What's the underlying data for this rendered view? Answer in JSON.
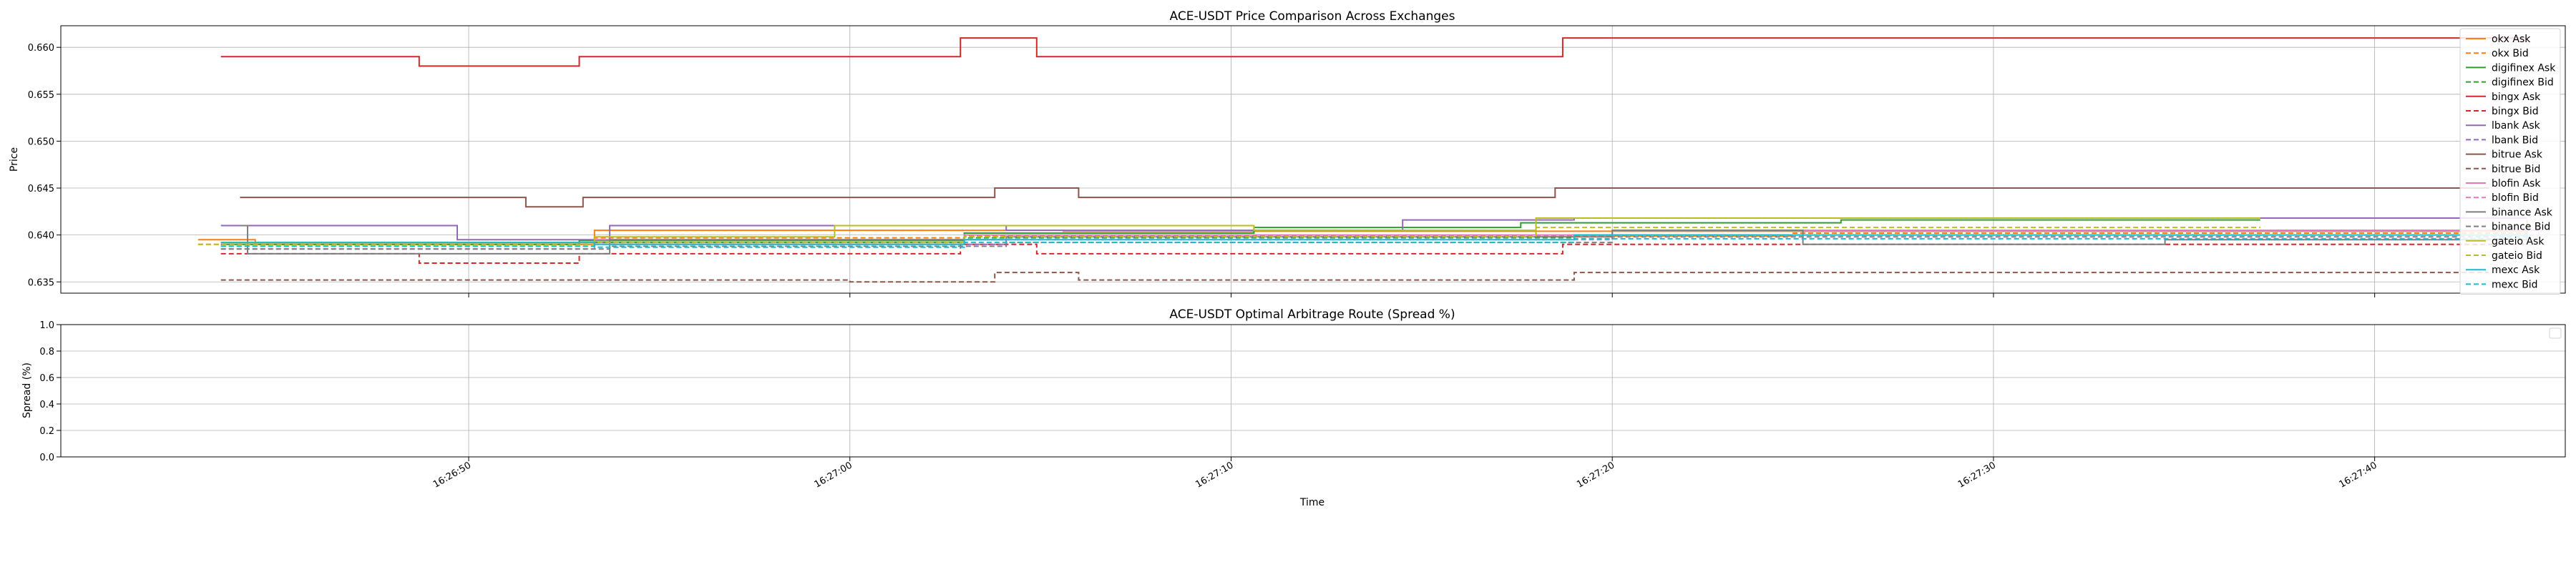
{
  "chart_data": [
    {
      "type": "line",
      "title": "ACE-USDT Price Comparison Across Exchanges",
      "xlabel": "",
      "ylabel": "Price",
      "ylim": [
        0.6338,
        0.6623
      ],
      "yticks": [
        0.635,
        0.64,
        0.645,
        0.65,
        0.655,
        0.66
      ],
      "ytick_labels": [
        "0.635",
        "0.640",
        "0.645",
        "0.650",
        "0.655",
        "0.660"
      ],
      "xlim": [
        "16:26:39.3",
        "16:27:45.0"
      ],
      "xtick_times": [
        "16:26:50",
        "16:27:00",
        "16:27:10",
        "16:27:20",
        "16:27:30",
        "16:27:40"
      ],
      "xtick_labels": [
        "",
        "",
        "",
        "",
        "",
        ""
      ],
      "grid": true,
      "legend_position": "upper-right",
      "series": [
        {
          "name": "okx Ask",
          "color": "#ff7f0e",
          "dash": false,
          "steps": [
            [
              "16:26:42.9",
              0.6395
            ],
            [
              "16:26:44.4",
              0.639
            ],
            [
              "16:26:53.3",
              0.6405
            ],
            [
              "16:27:05.6",
              0.6404
            ],
            [
              "16:27:44.0",
              0.6416
            ]
          ]
        },
        {
          "name": "okx Bid",
          "color": "#ff7f0e",
          "dash": true,
          "steps": [
            [
              "16:26:42.9",
              0.639
            ],
            [
              "16:26:53.3",
              0.6397
            ],
            [
              "16:27:03.0",
              0.6399
            ],
            [
              "16:27:24.7",
              0.6402
            ],
            [
              "16:27:44.0",
              0.6408
            ]
          ]
        },
        {
          "name": "digifinex Ask",
          "color": "#2ca02c",
          "dash": false,
          "steps": [
            [
              "16:26:43.5",
              0.639
            ],
            [
              "16:26:52.9",
              0.6394
            ],
            [
              "16:27:03.0",
              0.6402
            ],
            [
              "16:27:10.6",
              0.6408
            ],
            [
              "16:27:17.6",
              0.6413
            ],
            [
              "16:27:26.0",
              0.6416
            ],
            [
              "16:27:37.0",
              0.6416
            ]
          ]
        },
        {
          "name": "digifinex Bid",
          "color": "#2ca02c",
          "dash": true,
          "steps": [
            [
              "16:26:43.5",
              0.6388
            ],
            [
              "16:26:53.3",
              0.6392
            ],
            [
              "16:27:03.0",
              0.6397
            ],
            [
              "16:27:19.0",
              0.64
            ],
            [
              "16:27:37.0",
              0.6404
            ]
          ]
        },
        {
          "name": "bingx Ask",
          "color": "#d62728",
          "dash": false,
          "steps": [
            [
              "16:26:43.5",
              0.659
            ],
            [
              "16:26:48.7",
              0.658
            ],
            [
              "16:26:52.9",
              0.659
            ],
            [
              "16:27:02.9",
              0.661
            ],
            [
              "16:27:04.9",
              0.659
            ],
            [
              "16:27:18.7",
              0.661
            ],
            [
              "16:27:44.0",
              0.661
            ]
          ]
        },
        {
          "name": "bingx Bid",
          "color": "#d62728",
          "dash": true,
          "steps": [
            [
              "16:26:43.5",
              0.638
            ],
            [
              "16:26:48.7",
              0.637
            ],
            [
              "16:26:52.9",
              0.638
            ],
            [
              "16:27:02.9",
              0.639
            ],
            [
              "16:27:04.9",
              0.638
            ],
            [
              "16:27:18.7",
              0.639
            ],
            [
              "16:27:44.0",
              0.639
            ]
          ]
        },
        {
          "name": "lbank Ask",
          "color": "#9467bd",
          "dash": false,
          "steps": [
            [
              "16:26:43.5",
              0.641
            ],
            [
              "16:26:49.7",
              0.6395
            ],
            [
              "16:26:53.7",
              0.641
            ],
            [
              "16:27:04.1",
              0.6405
            ],
            [
              "16:27:14.5",
              0.6416
            ],
            [
              "16:27:19.0",
              0.6418
            ],
            [
              "16:27:44.0",
              0.6418
            ]
          ]
        },
        {
          "name": "lbank Bid",
          "color": "#9467bd",
          "dash": true,
          "steps": [
            [
              "16:26:43.5",
              0.6392
            ],
            [
              "16:26:53.7",
              0.639
            ],
            [
              "16:27:04.1",
              0.6398
            ],
            [
              "16:27:19.0",
              0.64
            ],
            [
              "16:27:44.0",
              0.6412
            ]
          ]
        },
        {
          "name": "bitrue Ask",
          "color": "#8c564b",
          "dash": false,
          "steps": [
            [
              "16:26:44.0",
              0.644
            ],
            [
              "16:26:51.5",
              0.643
            ],
            [
              "16:26:53.0",
              0.644
            ],
            [
              "16:27:01.0",
              0.644
            ],
            [
              "16:27:03.8",
              0.645
            ],
            [
              "16:27:06.0",
              0.644
            ],
            [
              "16:27:09.0",
              0.644
            ],
            [
              "16:27:18.5",
              0.645
            ],
            [
              "16:27:43.0",
              0.645
            ]
          ]
        },
        {
          "name": "bitrue Bid",
          "color": "#8c564b",
          "dash": true,
          "steps": [
            [
              "16:26:43.5",
              0.6352
            ],
            [
              "16:26:52.9",
              0.6352
            ],
            [
              "16:27:00.0",
              0.635
            ],
            [
              "16:27:03.8",
              0.636
            ],
            [
              "16:27:06.0",
              0.6352
            ],
            [
              "16:27:19.0",
              0.636
            ],
            [
              "16:27:43.0",
              0.636
            ]
          ]
        },
        {
          "name": "blofin Ask",
          "color": "#e377c2",
          "dash": false,
          "steps": [
            [
              "16:26:43.5",
              0.6392
            ],
            [
              "16:26:53.3",
              0.6395
            ],
            [
              "16:27:03.0",
              0.64
            ],
            [
              "16:27:20.0",
              0.6405
            ],
            [
              "16:27:44.3",
              0.641
            ]
          ]
        },
        {
          "name": "blofin Bid",
          "color": "#e377c2",
          "dash": true,
          "steps": [
            [
              "16:26:43.5",
              0.6385
            ],
            [
              "16:26:53.3",
              0.639
            ],
            [
              "16:27:03.0",
              0.6395
            ],
            [
              "16:27:20.0",
              0.64
            ],
            [
              "16:27:44.3",
              0.6405
            ]
          ]
        },
        {
          "name": "binance Ask",
          "color": "#7f7f7f",
          "dash": false,
          "steps": [
            [
              "16:26:44.0",
              0.641
            ],
            [
              "16:26:44.2",
              0.638
            ],
            [
              "16:26:53.7",
              0.6395
            ],
            [
              "16:27:04.1",
              0.6398
            ],
            [
              "16:27:20.0",
              0.6405
            ],
            [
              "16:27:25.0",
              0.639
            ],
            [
              "16:27:34.5",
              0.6395
            ],
            [
              "16:27:44.0",
              0.641
            ]
          ]
        },
        {
          "name": "binance Bid",
          "color": "#7f7f7f",
          "dash": true,
          "steps": [
            [
              "16:26:43.5",
              0.6385
            ],
            [
              "16:26:53.7",
              0.6388
            ],
            [
              "16:27:04.1",
              0.6392
            ],
            [
              "16:27:20.0",
              0.6398
            ],
            [
              "16:27:44.0",
              0.64
            ]
          ]
        },
        {
          "name": "gateio Ask",
          "color": "#bcbd22",
          "dash": false,
          "steps": [
            [
              "16:26:43.5",
              0.6392
            ],
            [
              "16:26:53.3",
              0.6398
            ],
            [
              "16:26:59.6",
              0.641
            ],
            [
              "16:27:03.0",
              0.641
            ],
            [
              "16:27:10.6",
              0.6405
            ],
            [
              "16:27:18.0",
              0.6418
            ],
            [
              "16:27:37.0",
              0.6418
            ]
          ]
        },
        {
          "name": "gateio Bid",
          "color": "#bcbd22",
          "dash": true,
          "steps": [
            [
              "16:26:42.9",
              0.639
            ],
            [
              "16:26:53.3",
              0.6392
            ],
            [
              "16:27:03.0",
              0.6398
            ],
            [
              "16:27:18.0",
              0.6408
            ],
            [
              "16:27:37.0",
              0.6408
            ]
          ]
        },
        {
          "name": "mexc Ask",
          "color": "#17becf",
          "dash": false,
          "steps": [
            [
              "16:26:43.5",
              0.6392
            ],
            [
              "16:26:53.3",
              0.639
            ],
            [
              "16:27:03.0",
              0.6395
            ],
            [
              "16:27:19.0",
              0.64
            ],
            [
              "16:27:44.0",
              0.6408
            ]
          ]
        },
        {
          "name": "mexc Bid",
          "color": "#17becf",
          "dash": true,
          "steps": [
            [
              "16:26:43.5",
              0.6388
            ],
            [
              "16:26:53.3",
              0.6387
            ],
            [
              "16:27:03.0",
              0.6392
            ],
            [
              "16:27:19.0",
              0.6396
            ],
            [
              "16:27:44.0",
              0.6404
            ]
          ]
        }
      ]
    },
    {
      "type": "line",
      "title": "ACE-USDT Optimal Arbitrage Route (Spread %)",
      "xlabel": "Time",
      "ylabel": "Spread (%)",
      "ylim": [
        0.0,
        1.0
      ],
      "yticks": [
        0.0,
        0.2,
        0.4,
        0.6,
        0.8,
        1.0
      ],
      "ytick_labels": [
        "0.0",
        "0.2",
        "0.4",
        "0.6",
        "0.8",
        "1.0"
      ],
      "xlim": [
        "16:26:39.3",
        "16:27:45.0"
      ],
      "xtick_times": [
        "16:26:50",
        "16:27:00",
        "16:27:10",
        "16:27:20",
        "16:27:30",
        "16:27:40"
      ],
      "xtick_labels": [
        "16:26:50",
        "16:27:00",
        "16:27:10",
        "16:27:20",
        "16:27:30",
        "16:27:40"
      ],
      "grid": true,
      "legend_position": "upper-right",
      "series": []
    }
  ]
}
